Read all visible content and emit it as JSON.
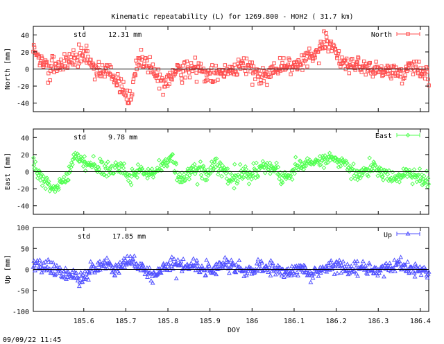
{
  "title": "Kinematic repeatability (L) for 1269.800 - HOH2  ( 31.7 km)",
  "footer_timestamp": "09/09/22 11:45",
  "chart_data": [
    {
      "type": "scatter",
      "panel": "north",
      "series_name": "North",
      "color": "#ff5050",
      "marker": "square",
      "std_label": "std",
      "std_value": "12.31 mm",
      "ylabel": "North [mm]",
      "ylim": [
        -50,
        50
      ],
      "yticks": [
        -40,
        -20,
        0,
        20,
        40
      ],
      "xlim": [
        185.48,
        186.42
      ],
      "std_mm": 12.31,
      "trend": [
        [
          185.48,
          22
        ],
        [
          185.52,
          -3
        ],
        [
          185.56,
          10
        ],
        [
          185.6,
          16
        ],
        [
          185.62,
          5
        ],
        [
          185.66,
          -4
        ],
        [
          185.69,
          -22
        ],
        [
          185.71,
          -38
        ],
        [
          185.73,
          14
        ],
        [
          185.76,
          2
        ],
        [
          185.79,
          -20
        ],
        [
          185.82,
          -3
        ],
        [
          185.86,
          3
        ],
        [
          185.9,
          -8
        ],
        [
          185.94,
          0
        ],
        [
          185.98,
          6
        ],
        [
          186.02,
          -8
        ],
        [
          186.06,
          0
        ],
        [
          186.08,
          3
        ],
        [
          186.11,
          7
        ],
        [
          186.13,
          14
        ],
        [
          186.16,
          26
        ],
        [
          186.18,
          32
        ],
        [
          186.2,
          18
        ],
        [
          186.23,
          6
        ],
        [
          186.27,
          2
        ],
        [
          186.31,
          -3
        ],
        [
          186.35,
          -5
        ],
        [
          186.39,
          2
        ],
        [
          186.42,
          -8
        ]
      ]
    },
    {
      "type": "scatter",
      "panel": "east",
      "series_name": "East",
      "color": "#50ff50",
      "marker": "diamond",
      "std_label": "std",
      "std_value": "9.78 mm",
      "ylabel": "East [mm]",
      "ylim": [
        -50,
        50
      ],
      "yticks": [
        -40,
        -20,
        0,
        20,
        40
      ],
      "xlim": [
        185.48,
        186.42
      ],
      "std_mm": 9.78,
      "trend": [
        [
          185.48,
          5
        ],
        [
          185.51,
          -12
        ],
        [
          185.53,
          -18
        ],
        [
          185.56,
          -8
        ],
        [
          185.58,
          18
        ],
        [
          185.6,
          8
        ],
        [
          185.63,
          5
        ],
        [
          185.66,
          0
        ],
        [
          185.69,
          6
        ],
        [
          185.71,
          -10
        ],
        [
          185.73,
          5
        ],
        [
          185.76,
          -5
        ],
        [
          185.79,
          10
        ],
        [
          185.81,
          14
        ],
        [
          185.83,
          -12
        ],
        [
          185.86,
          4
        ],
        [
          185.89,
          -2
        ],
        [
          185.92,
          8
        ],
        [
          185.95,
          -8
        ],
        [
          185.98,
          0
        ],
        [
          186.0,
          -3
        ],
        [
          186.02,
          5
        ],
        [
          186.05,
          8
        ],
        [
          186.07,
          -8
        ],
        [
          186.1,
          0
        ],
        [
          186.13,
          10
        ],
        [
          186.16,
          14
        ],
        [
          186.19,
          16
        ],
        [
          186.22,
          8
        ],
        [
          186.25,
          -4
        ],
        [
          186.28,
          4
        ],
        [
          186.31,
          -2
        ],
        [
          186.34,
          -8
        ],
        [
          186.37,
          -2
        ],
        [
          186.4,
          -8
        ],
        [
          186.42,
          -15
        ]
      ]
    },
    {
      "type": "scatter",
      "panel": "up",
      "series_name": "Up",
      "color": "#5050ff",
      "marker": "triangle",
      "std_label": "std",
      "std_value": "17.85 mm",
      "ylabel": "Up [mm]",
      "ylim": [
        -100,
        100
      ],
      "yticks": [
        -100,
        -50,
        0,
        50,
        100
      ],
      "xlim": [
        185.48,
        186.42
      ],
      "xlabel": "DOY",
      "xticks": [
        185.6,
        185.7,
        185.8,
        185.9,
        186,
        186.1,
        186.2,
        186.3,
        186.4
      ],
      "xtick_labels": [
        "185.6",
        "185.7",
        "185.8",
        "185.9",
        "186",
        "186.1",
        "186.2",
        "186.3",
        "186.4"
      ],
      "std_mm": 17.85,
      "trend": [
        [
          185.48,
          10
        ],
        [
          185.51,
          12
        ],
        [
          185.54,
          -5
        ],
        [
          185.57,
          -12
        ],
        [
          185.59,
          -25
        ],
        [
          185.62,
          5
        ],
        [
          185.65,
          12
        ],
        [
          185.68,
          0
        ],
        [
          185.71,
          25
        ],
        [
          185.73,
          10
        ],
        [
          185.76,
          -10
        ],
        [
          185.79,
          5
        ],
        [
          185.81,
          15
        ],
        [
          185.84,
          10
        ],
        [
          185.87,
          5
        ],
        [
          185.9,
          0
        ],
        [
          185.93,
          12
        ],
        [
          185.96,
          5
        ],
        [
          185.99,
          -5
        ],
        [
          186.02,
          8
        ],
        [
          186.05,
          2
        ],
        [
          186.08,
          -5
        ],
        [
          186.11,
          0
        ],
        [
          186.14,
          -8
        ],
        [
          186.17,
          5
        ],
        [
          186.2,
          10
        ],
        [
          186.23,
          0
        ],
        [
          186.26,
          5
        ],
        [
          186.29,
          -3
        ],
        [
          186.32,
          2
        ],
        [
          186.35,
          8
        ],
        [
          186.38,
          0
        ],
        [
          186.42,
          -5
        ]
      ]
    }
  ]
}
